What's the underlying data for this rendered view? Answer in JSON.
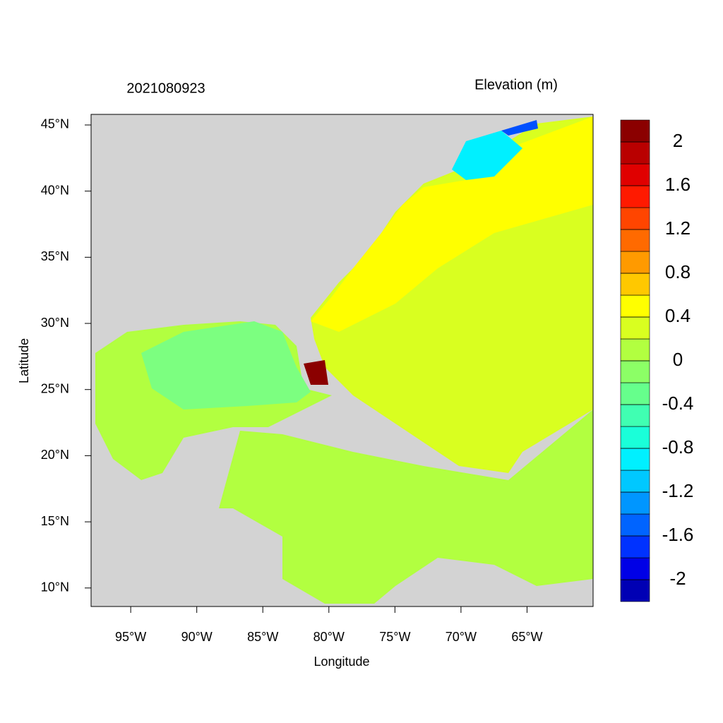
{
  "map": {
    "title_left": "2021080923",
    "title_right": "Elevation (m)",
    "x_label": "Longitude",
    "y_label": "Latitude",
    "xlim": [
      -98,
      -60
    ],
    "ylim": [
      8.6,
      45.8
    ],
    "xticks": [
      {
        "value": -95,
        "label": "95°W"
      },
      {
        "value": -90,
        "label": "90°W"
      },
      {
        "value": -85,
        "label": "85°W"
      },
      {
        "value": -80,
        "label": "80°W"
      },
      {
        "value": -75,
        "label": "75°W"
      },
      {
        "value": -70,
        "label": "70°W"
      },
      {
        "value": -65,
        "label": "65°W"
      }
    ],
    "yticks": [
      {
        "value": 10,
        "label": "10°N"
      },
      {
        "value": 15,
        "label": "15°N"
      },
      {
        "value": 20,
        "label": "20°N"
      },
      {
        "value": 25,
        "label": "25°N"
      },
      {
        "value": 30,
        "label": "30°N"
      },
      {
        "value": 35,
        "label": "35°N"
      },
      {
        "value": 40,
        "label": "40°N"
      },
      {
        "value": 45,
        "label": "45°N"
      }
    ],
    "colorbar": {
      "lim": [
        -2.2,
        2.2
      ],
      "ticks": [
        -2,
        -1.6,
        -1.2,
        -0.8,
        -0.4,
        0,
        0.4,
        0.8,
        1.2,
        1.6,
        2
      ],
      "colors": [
        "#0000b4",
        "#0000e6",
        "#0032ff",
        "#0064ff",
        "#0096ff",
        "#00c8ff",
        "#00f0ff",
        "#1affd9",
        "#40ffb2",
        "#66ff8c",
        "#8cff66",
        "#b2ff40",
        "#d9ff20",
        "#ffff00",
        "#ffc800",
        "#ff9a00",
        "#ff6a00",
        "#ff4500",
        "#ff1a00",
        "#e00000",
        "#b90000",
        "#8b0000"
      ]
    }
  }
}
